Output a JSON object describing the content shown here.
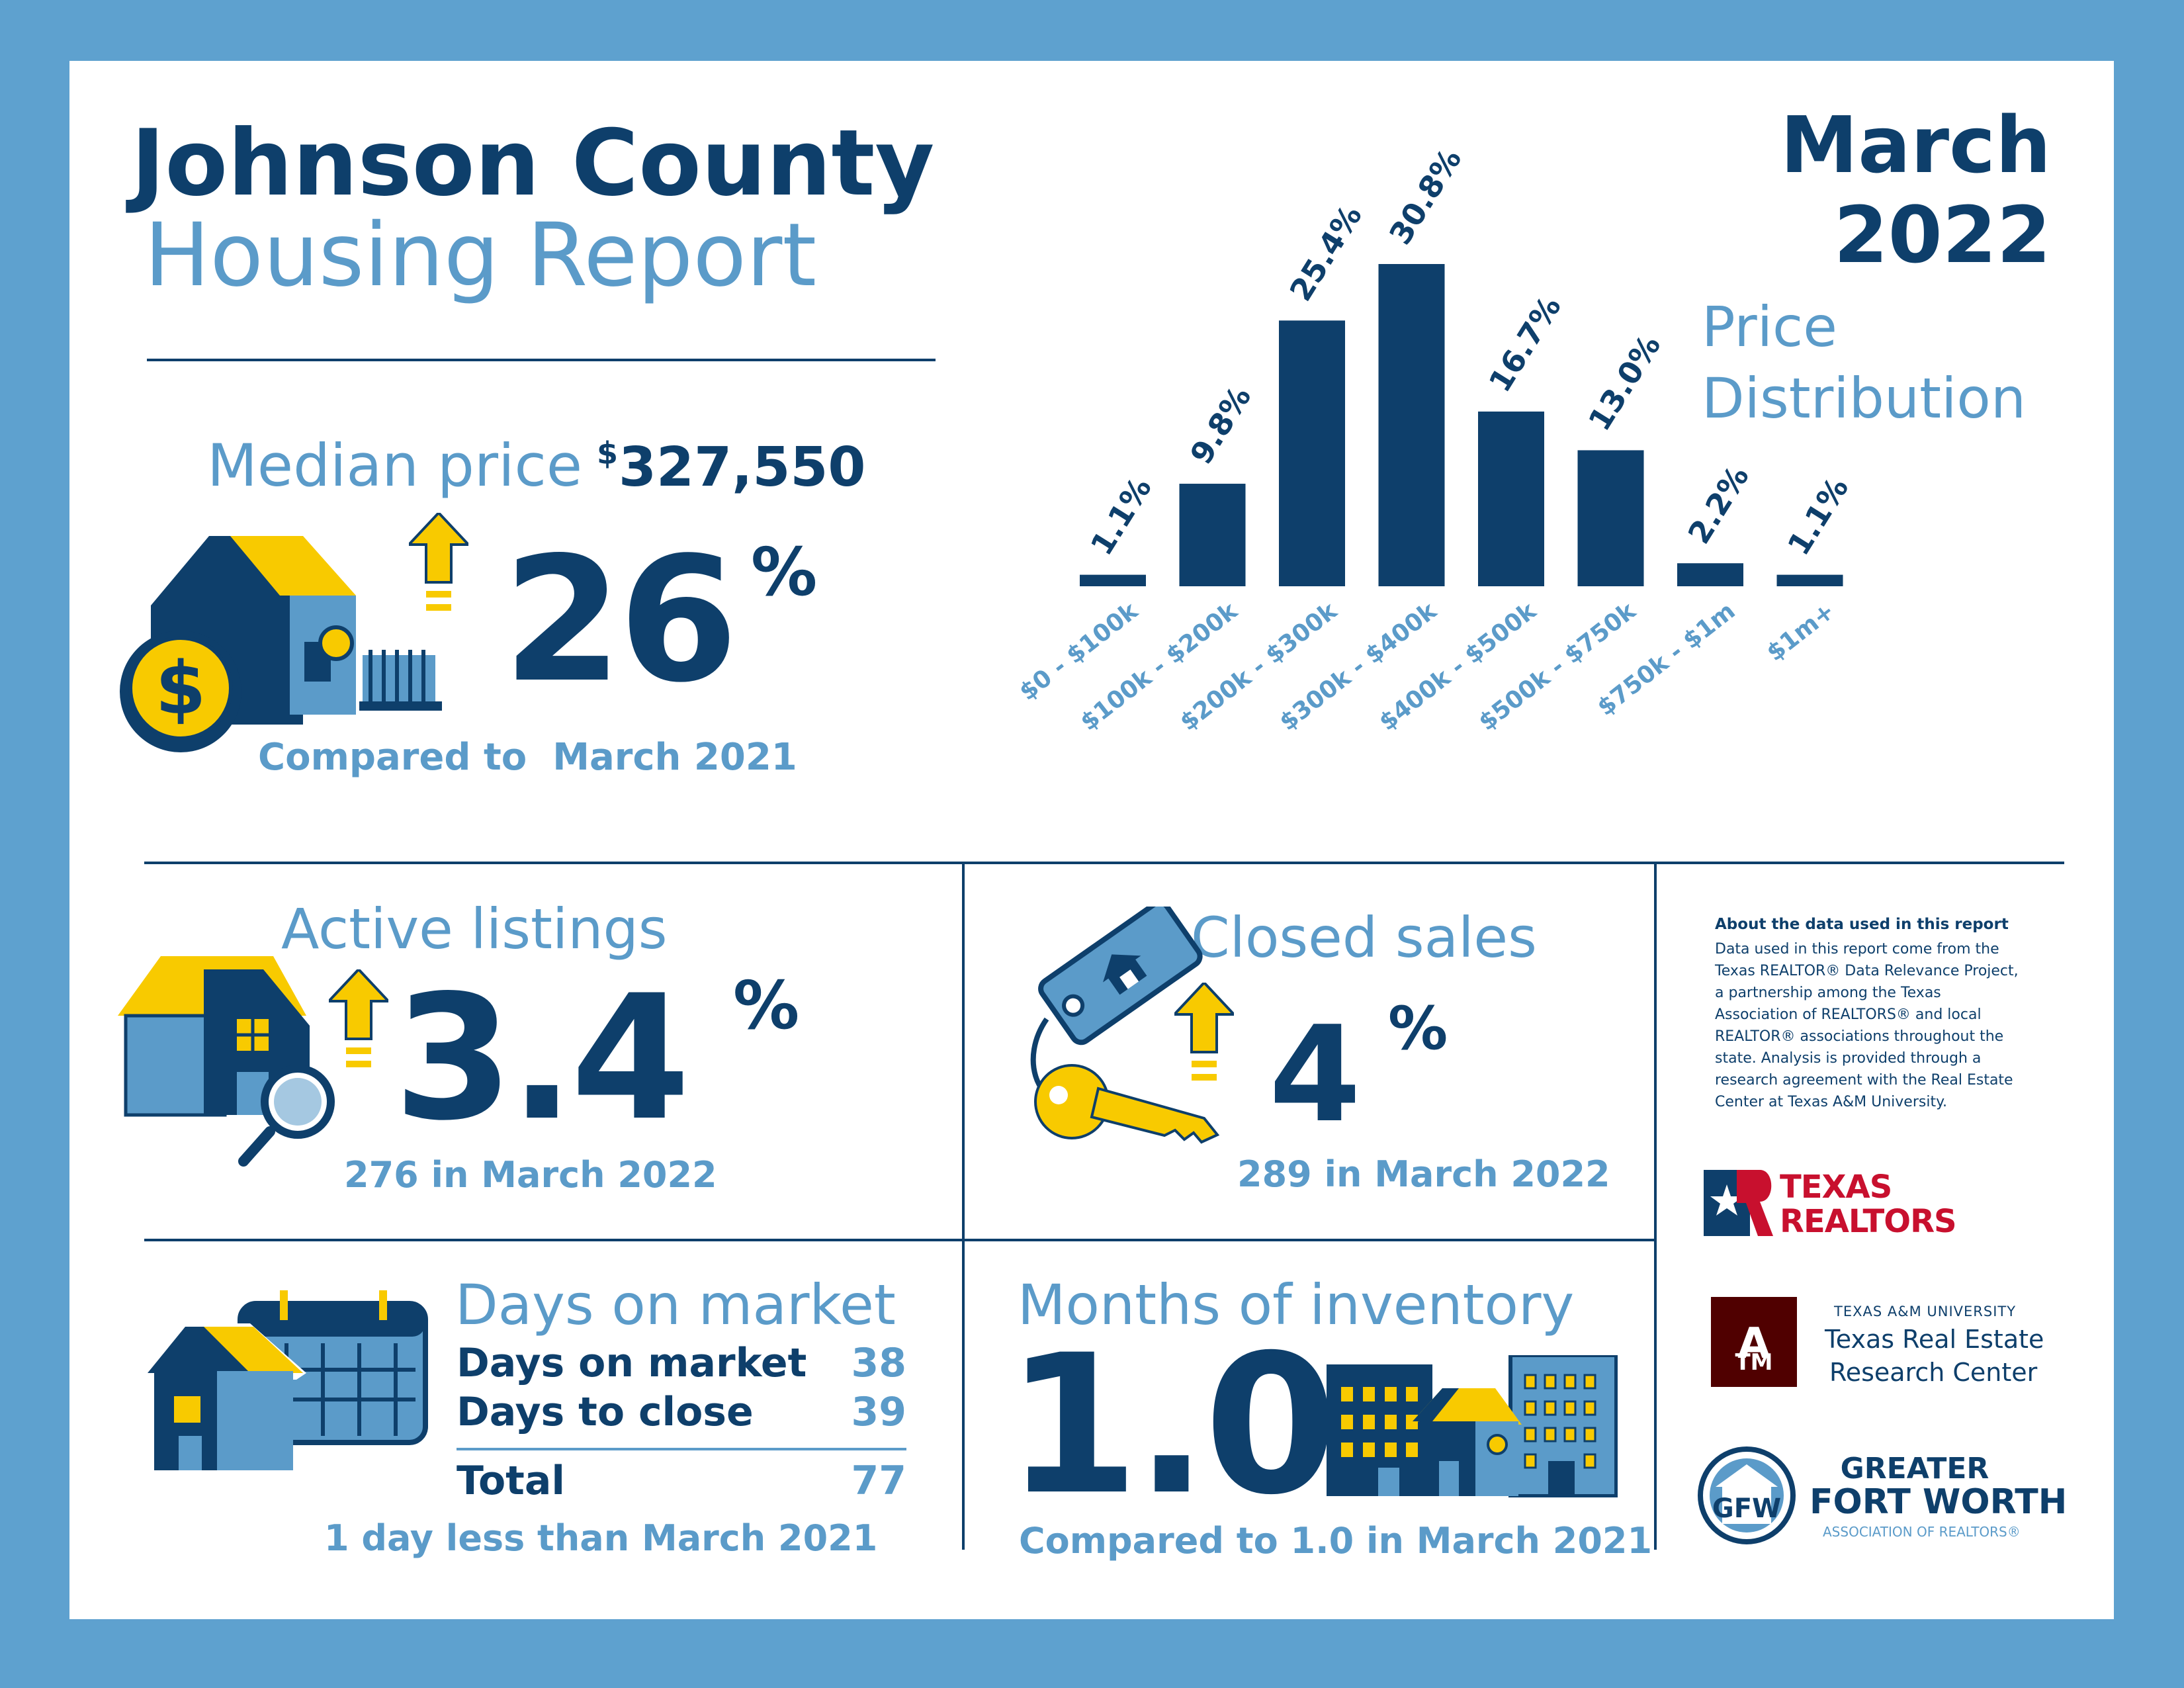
{
  "header": {
    "title_line1": "Johnson County",
    "title_line2": "Housing Report",
    "month": "March",
    "year": "2022"
  },
  "median": {
    "label": "Median price",
    "dollar_sign": "$",
    "value": "327,550",
    "change": "26",
    "pct_sign": "%",
    "comparison": "Compared to  March 2021"
  },
  "chart_title_line1": "Price",
  "chart_title_line2": "Distribution",
  "chart_data": {
    "type": "bar",
    "title": "Price Distribution",
    "categories": [
      "$0 - $100k",
      "$100k - $200k",
      "$200k - $300k",
      "$300k - $400k",
      "$400k - $500k",
      "$500k - $750k",
      "$750k - $1m",
      "$1m+"
    ],
    "values": [
      1.1,
      9.8,
      25.4,
      30.8,
      16.7,
      13.0,
      2.2,
      1.1
    ],
    "value_labels": [
      "1.1%",
      "9.8%",
      "25.4%",
      "30.8%",
      "16.7%",
      "13.0%",
      "2.2%",
      "1.1%"
    ],
    "unit": "%",
    "ylim": [
      0,
      30.8
    ],
    "grid": false,
    "colors": {
      "bar": "#0e3f6b",
      "label": "#0e3f6b",
      "category": "#5b9bc9"
    }
  },
  "active": {
    "label": "Active listings",
    "change": "3.4",
    "pct_sign": "%",
    "sub": "276 in March 2022"
  },
  "closed": {
    "label": "Closed sales",
    "change": "4",
    "pct_sign": "%",
    "sub": "289 in March 2022"
  },
  "dom": {
    "label": "Days on market",
    "row1_label": "Days on market",
    "row1_value": "38",
    "row2_label": "Days to close",
    "row2_value": "39",
    "total_label": "Total",
    "total_value": "77",
    "sub": "1 day less than March 2021"
  },
  "inventory": {
    "label": "Months of inventory",
    "value": "1.0",
    "sub": "Compared to 1.0 in March 2021"
  },
  "about": {
    "heading": "About the data used in this report",
    "lines": [
      "Data used in this report come from the",
      "Texas REALTOR® Data Relevance Project,",
      "a partnership among the Texas",
      "Association of REALTORS® and local",
      "REALTOR® associations throughout the",
      "state. Analysis is provided through a",
      "research agreement with the Real Estate",
      "Center at Texas A&M University."
    ]
  },
  "logos": {
    "texas_realtors_line1": "TEXAS",
    "texas_realtors_line2": "REALTORS",
    "tamu_small": "TEXAS A&M UNIVERSITY",
    "tamu_line1": "Texas Real Estate",
    "tamu_line2": "Research Center",
    "gfw_line1": "GREATER",
    "gfw_line2": "FORT WORTH",
    "gfw_line3": "ASSOCIATION OF REALTORS®"
  },
  "colors": {
    "frame": "#5ea1cf",
    "navy": "#0e3f6b",
    "light_blue": "#5b9bc9",
    "yellow": "#f8ca00",
    "maroon": "#500000",
    "red": "#c8102e"
  }
}
